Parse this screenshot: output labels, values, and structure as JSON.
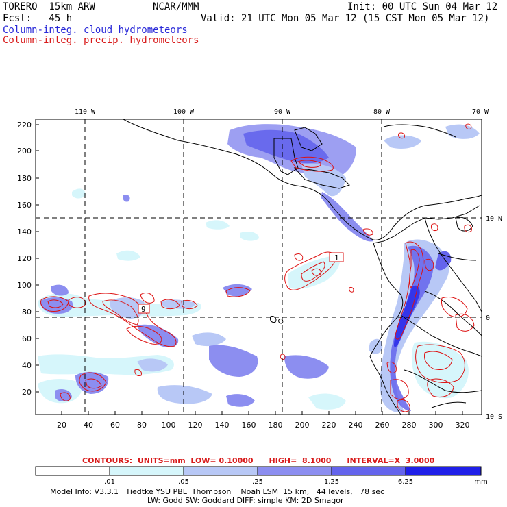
{
  "header": {
    "model": "TORERO  15km ARW",
    "org": "NCAR/MMM",
    "init": "Init: 00 UTC Sun 04 Mar 12",
    "fcst": "Fcst:   45 h",
    "valid": "Valid: 21 UTC Mon 05 Mar 12 (15 CST Mon 05 Mar 12)",
    "field_cloud": "Column-integ. cloud hydrometeors",
    "field_precip": "Column-integ. precip. hydrometeors"
  },
  "map": {
    "lon_labels": [
      "110 W",
      "100 W",
      "90 W",
      "80 W",
      "70 W"
    ],
    "lat_labels": [
      "10 N",
      "0",
      "10 S"
    ],
    "y_ticks": [
      "220",
      "200",
      "180",
      "160",
      "140",
      "120",
      "100",
      "80",
      "60",
      "40",
      "20"
    ],
    "x_ticks": [
      "20",
      "40",
      "60",
      "80",
      "100",
      "120",
      "140",
      "160",
      "180",
      "200",
      "220",
      "240",
      "260",
      "280",
      "300",
      "320"
    ],
    "contour_labels": [
      "1",
      "9"
    ]
  },
  "contours": "CONTOURS:  UNITS=mm  LOW= 0.10000      HIGH=  8.1000      INTERVAL=X  3.0000",
  "colorbar": {
    "labels": [
      ".01",
      ".05",
      ".25",
      "1.25",
      "6.25"
    ],
    "unit": "mm",
    "colors": [
      "#ffffff",
      "#d6f6fb",
      "#b8c8f6",
      "#8c8ef0",
      "#6464ec",
      "#2020e8"
    ]
  },
  "footer": {
    "line1": "Model Info: V3.3.1   Tiedtke YSU PBL  Thompson    Noah LSM  15 km,   44 levels,   78 sec",
    "line2": "LW: Godd SW: Goddard DIFF: simple KM: 2D Smagor"
  }
}
